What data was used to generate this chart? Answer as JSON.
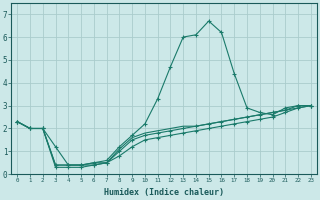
{
  "xlabel": "Humidex (Indice chaleur)",
  "ylabel": "",
  "xlim": [
    -0.5,
    23.5
  ],
  "ylim": [
    0,
    7.5
  ],
  "xticks": [
    0,
    1,
    2,
    3,
    4,
    5,
    6,
    7,
    8,
    9,
    10,
    11,
    12,
    13,
    14,
    15,
    16,
    17,
    18,
    19,
    20,
    21,
    22,
    23
  ],
  "yticks": [
    0,
    1,
    2,
    3,
    4,
    5,
    6,
    7
  ],
  "background_color": "#cce8e8",
  "grid_color": "#aacccc",
  "line_color": "#1a7a6a",
  "lines": [
    {
      "x": [
        0,
        1,
        2,
        3,
        4,
        5,
        6,
        7,
        8,
        9,
        10,
        11,
        12,
        13,
        14,
        15,
        16,
        17,
        18,
        19,
        20,
        21,
        22,
        23
      ],
      "y": [
        2.3,
        2.0,
        2.0,
        1.2,
        0.4,
        0.4,
        0.5,
        0.6,
        1.2,
        1.7,
        2.2,
        3.3,
        4.7,
        6.0,
        6.1,
        6.7,
        6.2,
        4.4,
        2.9,
        2.7,
        2.6,
        2.9,
        3.0,
        3.0
      ],
      "marker": true
    },
    {
      "x": [
        0,
        1,
        2,
        3,
        4,
        5,
        6,
        7,
        8,
        9,
        10,
        11,
        12,
        13,
        14,
        15,
        16,
        17,
        18,
        19,
        20,
        21,
        22,
        23
      ],
      "y": [
        2.3,
        2.0,
        2.0,
        0.4,
        0.4,
        0.4,
        0.4,
        0.5,
        1.0,
        1.5,
        1.7,
        1.8,
        1.9,
        2.0,
        2.1,
        2.2,
        2.3,
        2.4,
        2.5,
        2.6,
        2.7,
        2.8,
        3.0,
        3.0
      ],
      "marker": true
    },
    {
      "x": [
        0,
        1,
        2,
        3,
        4,
        5,
        6,
        7,
        8,
        9,
        10,
        11,
        12,
        13,
        14,
        15,
        16,
        17,
        18,
        19,
        20,
        21,
        22,
        23
      ],
      "y": [
        2.3,
        2.0,
        2.0,
        0.4,
        0.4,
        0.4,
        0.5,
        0.5,
        1.1,
        1.6,
        1.8,
        1.9,
        2.0,
        2.1,
        2.1,
        2.2,
        2.3,
        2.4,
        2.5,
        2.6,
        2.7,
        2.8,
        2.9,
        3.0
      ],
      "marker": false
    },
    {
      "x": [
        0,
        1,
        2,
        3,
        4,
        5,
        6,
        7,
        8,
        9,
        10,
        11,
        12,
        13,
        14,
        15,
        16,
        17,
        18,
        19,
        20,
        21,
        22,
        23
      ],
      "y": [
        2.3,
        2.0,
        2.0,
        0.3,
        0.3,
        0.3,
        0.4,
        0.5,
        0.8,
        1.2,
        1.5,
        1.6,
        1.7,
        1.8,
        1.9,
        2.0,
        2.1,
        2.2,
        2.3,
        2.4,
        2.5,
        2.7,
        2.9,
        3.0
      ],
      "marker": true
    }
  ]
}
